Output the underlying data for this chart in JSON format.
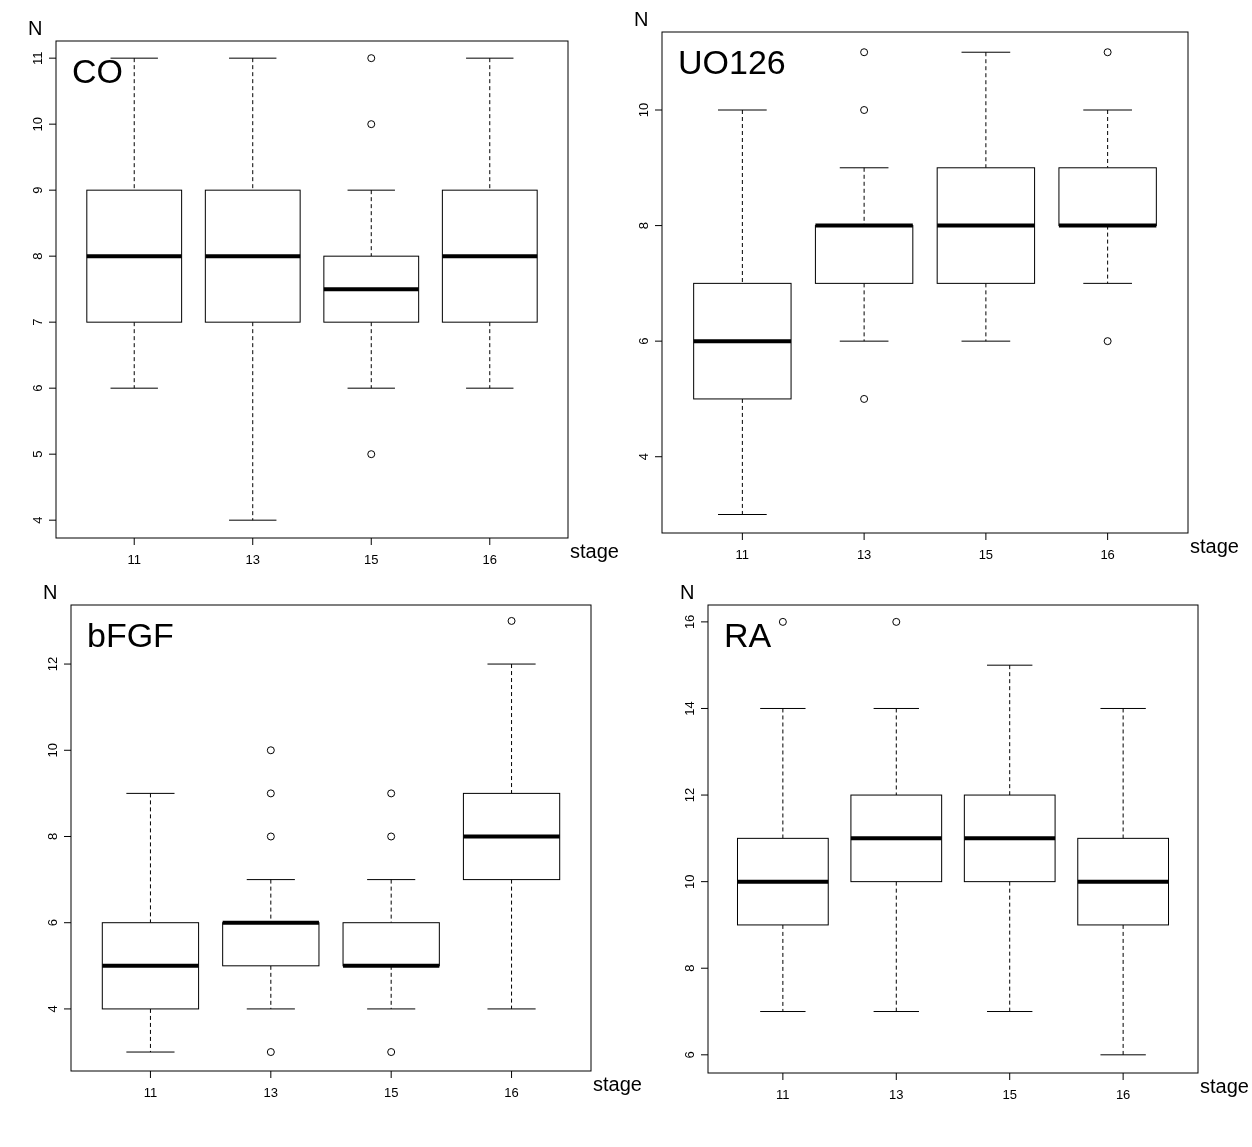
{
  "chart_data": [
    {
      "type": "box",
      "title": "CO",
      "ylabel": "N",
      "xlabel": "stage",
      "categories": [
        "11",
        "13",
        "15",
        "16"
      ],
      "ylim": [
        3.73,
        11.26
      ],
      "yticks": [
        4,
        5,
        6,
        7,
        8,
        9,
        10,
        11
      ],
      "boxes": [
        {
          "low": 6,
          "q1": 7,
          "median": 8,
          "q3": 9,
          "high": 11
        },
        {
          "low": 4,
          "q1": 7,
          "median": 8,
          "q3": 9,
          "high": 11
        },
        {
          "low": 6,
          "q1": 7,
          "median": 7.5,
          "q3": 8,
          "high": 9,
          "outliers": [
            10,
            11,
            5
          ]
        },
        {
          "low": 6,
          "q1": 7,
          "median": 8,
          "q3": 9,
          "high": 11
        }
      ]
    },
    {
      "type": "box",
      "title": "UO126",
      "ylabel": "N",
      "xlabel": "stage",
      "categories": [
        "11",
        "13",
        "15",
        "16"
      ],
      "ylim": [
        2.68,
        11.35
      ],
      "yticks": [
        4,
        6,
        8,
        10
      ],
      "boxes": [
        {
          "low": 3,
          "q1": 5,
          "median": 6,
          "q3": 7,
          "high": 10
        },
        {
          "low": 6,
          "q1": 7,
          "median": 8,
          "q3": 8,
          "high": 9,
          "outliers": [
            10,
            11,
            5
          ]
        },
        {
          "low": 6,
          "q1": 7,
          "median": 8,
          "q3": 9,
          "high": 11
        },
        {
          "low": 7,
          "q1": 8,
          "median": 8,
          "q3": 9,
          "high": 10,
          "outliers": [
            11,
            6
          ]
        }
      ]
    },
    {
      "type": "box",
      "title": "bFGF",
      "ylabel": "N",
      "xlabel": "stage",
      "categories": [
        "11",
        "13",
        "15",
        "16"
      ],
      "ylim": [
        2.56,
        13.37
      ],
      "yticks": [
        4,
        6,
        8,
        10,
        12
      ],
      "boxes": [
        {
          "low": 3,
          "q1": 4,
          "median": 5,
          "q3": 6,
          "high": 9
        },
        {
          "low": 4,
          "q1": 5,
          "median": 6,
          "q3": 6,
          "high": 7,
          "outliers": [
            8,
            9,
            10,
            3
          ]
        },
        {
          "low": 4,
          "q1": 5,
          "median": 5,
          "q3": 6,
          "high": 7,
          "outliers": [
            8,
            9,
            3
          ]
        },
        {
          "low": 4,
          "q1": 7,
          "median": 8,
          "q3": 9,
          "high": 12,
          "outliers": [
            13
          ]
        }
      ]
    },
    {
      "type": "box",
      "title": "RA",
      "ylabel": "N",
      "xlabel": "stage",
      "categories": [
        "11",
        "13",
        "15",
        "16"
      ],
      "ylim": [
        5.58,
        16.39
      ],
      "yticks": [
        6,
        8,
        10,
        12,
        14,
        16
      ],
      "boxes": [
        {
          "low": 7,
          "q1": 9,
          "median": 10,
          "q3": 11,
          "high": 14,
          "outliers": [
            16
          ]
        },
        {
          "low": 7,
          "q1": 10,
          "median": 11,
          "q3": 12,
          "high": 14,
          "outliers": [
            16
          ]
        },
        {
          "low": 7,
          "q1": 10,
          "median": 11,
          "q3": 12,
          "high": 15
        },
        {
          "low": 6,
          "q1": 9,
          "median": 10,
          "q3": 11,
          "high": 14
        }
      ]
    }
  ]
}
